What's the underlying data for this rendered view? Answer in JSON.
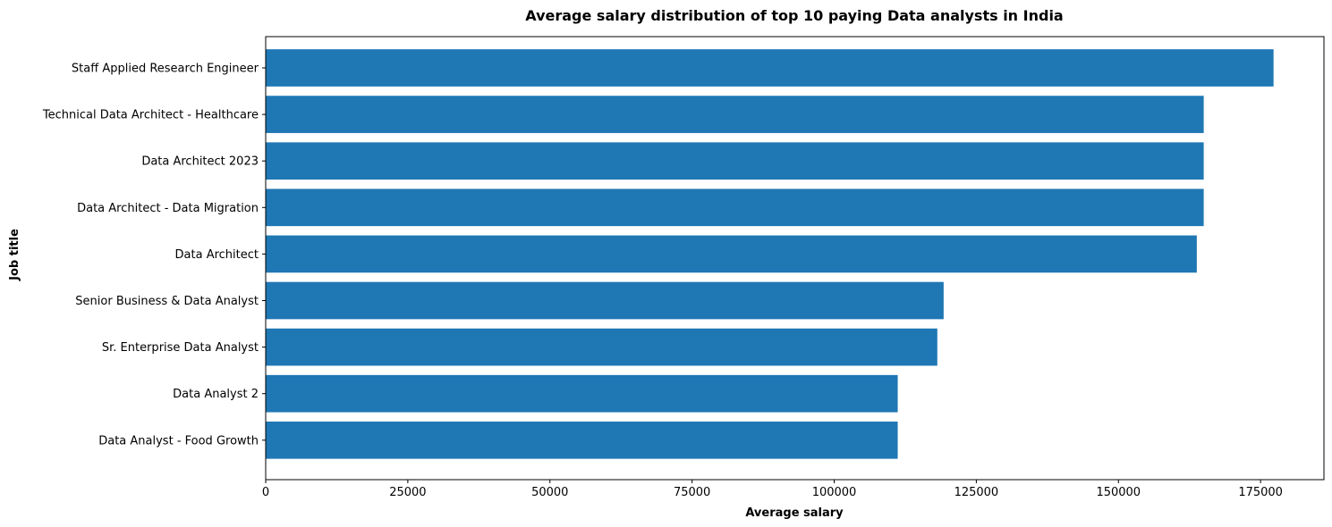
{
  "chart_data": {
    "type": "bar",
    "orientation": "horizontal",
    "title": "Average salary distribution of top 10 paying Data analysts in India",
    "xlabel": "Average salary",
    "ylabel": "Job title",
    "categories": [
      "Staff Applied Research Engineer",
      "Technical Data Architect - Healthcare",
      "Data Architect 2023",
      "Data Architect - Data Migration",
      "Data Architect",
      "Senior Business & Data Analyst",
      "Sr. Enterprise Data Analyst",
      "Data Analyst 2",
      "Data Analyst - Food Growth"
    ],
    "values": [
      177283,
      165000,
      165000,
      165000,
      163782,
      119250,
      118140,
      111175,
      111175
    ],
    "xlim": [
      0,
      186148
    ],
    "xticks": [
      0,
      25000,
      50000,
      75000,
      100000,
      125000,
      150000,
      175000
    ],
    "bar_color": "#1f77b4",
    "grid": false,
    "legend": "none"
  }
}
